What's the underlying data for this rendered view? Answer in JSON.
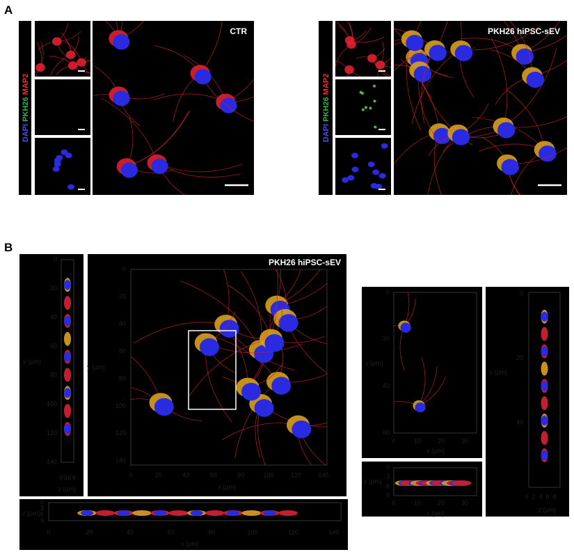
{
  "panel_a": {
    "label": "A",
    "channel_label": {
      "dapi": "DAPI",
      "pkh26": "PKH26",
      "map2": "MAP2"
    },
    "groups": [
      {
        "condition": "CTR"
      },
      {
        "condition": "PKH26 hiPSC-sEV"
      }
    ]
  },
  "panel_b": {
    "label": "B",
    "title": "PKH26 hiPSC-sEV",
    "views": [
      {
        "axes": [
          {
            "label": "y (µm)",
            "ticks": [
              0,
              20,
              40,
              60,
              80,
              100,
              120,
              140
            ]
          },
          {
            "label": "z (µm)",
            "ticks": [
              0,
              3,
              6,
              9
            ]
          }
        ]
      },
      {
        "axes": [
          {
            "label": "y (µm)",
            "ticks": [
              0,
              20,
              40,
              60,
              80,
              100,
              120,
              140
            ]
          },
          {
            "label": "x (µm)",
            "ticks": [
              0,
              20,
              40,
              60,
              80,
              100,
              120,
              140
            ]
          }
        ]
      },
      {
        "axes": [
          {
            "label": "z (µm)",
            "ticks": [
              0,
              3,
              6,
              9
            ]
          },
          {
            "label": "x (µm)",
            "ticks": [
              0,
              20,
              40,
              60,
              80,
              100,
              120,
              140
            ]
          }
        ]
      },
      {
        "axes": [
          {
            "label": "y (µm)",
            "ticks": [
              0,
              20,
              40,
              60
            ]
          },
          {
            "label": "x (µm)",
            "ticks": [
              0,
              10,
              20,
              30
            ]
          }
        ]
      },
      {
        "axes": [
          {
            "label": "z (µm)",
            "ticks": [
              0,
              3,
              6,
              9
            ]
          },
          {
            "label": "x (µm)",
            "ticks": [
              0,
              10,
              20,
              30
            ]
          }
        ]
      },
      {
        "axes": [
          {
            "label": "y (µm)",
            "ticks": [
              0,
              20,
              40
            ]
          },
          {
            "label": "z (µm)",
            "ticks": [
              0,
              2,
              4,
              6,
              8
            ]
          }
        ]
      }
    ]
  }
}
